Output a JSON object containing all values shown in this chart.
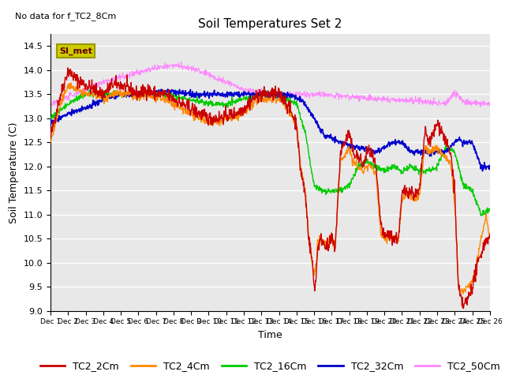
{
  "title": "Soil Temperatures Set 2",
  "no_data_text": "No data for f_TC2_8Cm",
  "xlabel": "Time",
  "ylabel": "Soil Temperature (C)",
  "ylim": [
    9.0,
    14.75
  ],
  "yticks": [
    9.0,
    9.5,
    10.0,
    10.5,
    11.0,
    11.5,
    12.0,
    12.5,
    13.0,
    13.5,
    14.0,
    14.5
  ],
  "xtick_labels": [
    "Dec 1",
    "Dec 2",
    "Dec 3",
    "Dec 4",
    "Dec 5",
    "Dec 6",
    "Dec 7",
    "Dec 8",
    "Dec 9",
    "Dec 10",
    "Dec 11",
    "Dec 12",
    "Dec 13",
    "Dec 14",
    "Dec 15",
    "Dec 16",
    "Dec 17",
    "Dec 18",
    "Dec 19",
    "Dec 20",
    "Dec 21",
    "Dec 22",
    "Dec 23",
    "Dec 24",
    "Dec 25",
    "Dec 26"
  ],
  "series_colors": {
    "TC2_2Cm": "#cc0000",
    "TC2_4Cm": "#ff8800",
    "TC2_16Cm": "#00cc00",
    "TC2_32Cm": "#0000cc",
    "TC2_50Cm": "#ff88ff"
  },
  "legend_box_facecolor": "#cccc00",
  "legend_box_edgecolor": "#999900",
  "legend_box_text": "SI_met",
  "legend_box_text_color": "#660000",
  "plot_bg_color": "#e8e8e8",
  "fig_bg_color": "#ffffff",
  "grid_color": "#ffffff",
  "title_fontsize": 11,
  "axis_label_fontsize": 9,
  "tick_fontsize": 8,
  "legend_fontsize": 9
}
